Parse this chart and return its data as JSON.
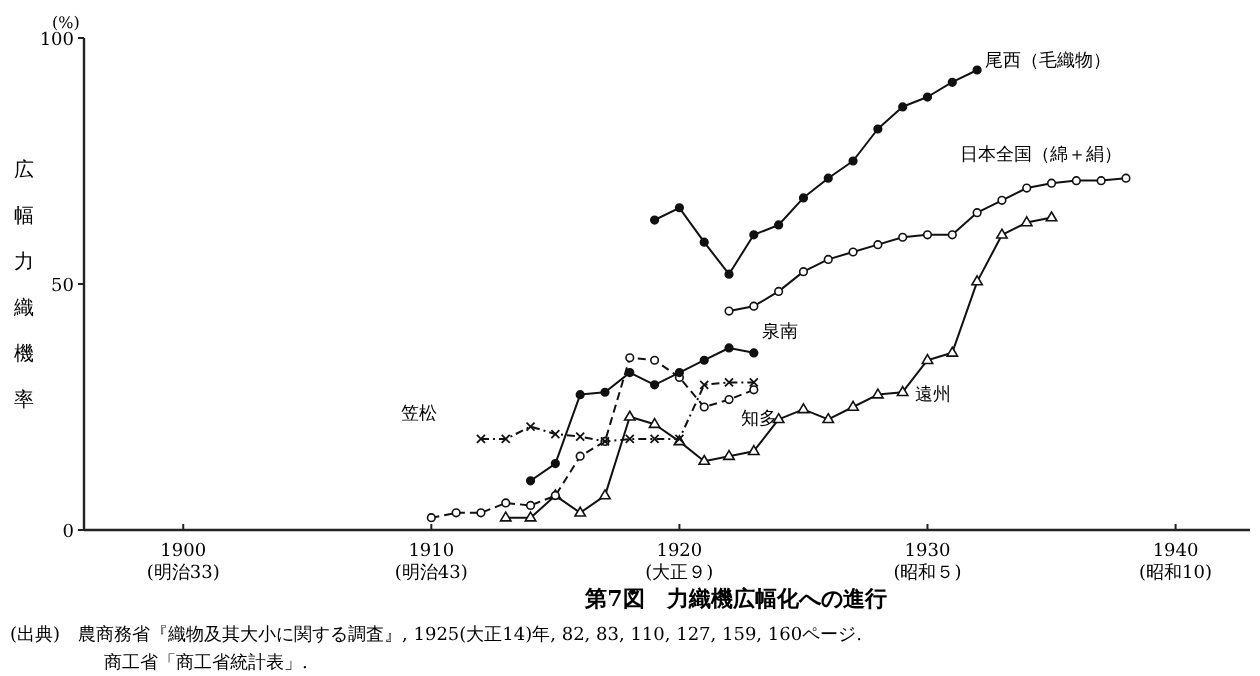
{
  "chart_data": {
    "type": "line",
    "title": "第7図　力織機広幅化への進行",
    "ylabel": "広幅力織機率",
    "xlim": [
      1896,
      1943
    ],
    "ylim": [
      0,
      100
    ],
    "xticks": [
      1900,
      1910,
      1920,
      1930,
      1940
    ],
    "yticks": [
      0,
      50,
      100
    ],
    "grid": false,
    "annotations": [
      "(%)",
      "(出典)　農商務省『織物及其大小に関する調査』, 1925(大正14)年,  82, 83, 110, 127, 159, 160ページ.",
      "商工省「商工省統計表」.",
      "(明治33)",
      "(明治43)",
      "(大正９)",
      "(昭和５)",
      "(昭和10)"
    ],
    "series": [
      {
        "name": "尾西（毛織物）",
        "color": "#111111",
        "marker": "circle",
        "line_style": "solid",
        "x": [
          1919,
          1920,
          1921,
          1922,
          1923,
          1924,
          1925,
          1926,
          1927,
          1928,
          1929,
          1930,
          1931,
          1932
        ],
        "values": [
          63,
          65.5,
          58.5,
          52,
          60,
          62,
          67.5,
          71.5,
          75,
          81.5,
          86,
          88,
          91,
          93.5
        ]
      },
      {
        "name": "日本全国（綿＋絹）",
        "color": "#111111",
        "marker": "circle",
        "line_style": "solid",
        "x": [
          1922,
          1923,
          1924,
          1925,
          1926,
          1927,
          1928,
          1929,
          1930,
          1931,
          1932,
          1933,
          1934,
          1935,
          1936,
          1937,
          1938
        ],
        "values": [
          44.5,
          45.5,
          48.5,
          52.5,
          55,
          56.5,
          58,
          59.5,
          60,
          60,
          64.5,
          67,
          69.5,
          70.5,
          71,
          71,
          71.5
        ]
      },
      {
        "name": "泉南",
        "color": "#111111",
        "marker": "circle",
        "line_style": "solid",
        "x": [
          1914,
          1915,
          1916,
          1917,
          1918,
          1919,
          1920,
          1921,
          1922,
          1923
        ],
        "values": [
          10,
          13.5,
          27.5,
          28,
          32,
          29.5,
          32,
          34.5,
          37,
          36
        ]
      },
      {
        "name": "笠松",
        "color": "#111111",
        "marker": "cross",
        "line_style": "dashdot",
        "x": [
          1912,
          1913,
          1914,
          1915,
          1916,
          1917,
          1918,
          1919,
          1920,
          1921,
          1922,
          1923
        ],
        "values": [
          18.5,
          18.5,
          21,
          19.5,
          19,
          18,
          18.5,
          18.5,
          18.5,
          29.5,
          30,
          30
        ]
      },
      {
        "name": "知多",
        "color": "#111111",
        "marker": "circle",
        "line_style": "dashed",
        "x": [
          1910,
          1911,
          1912,
          1913,
          1914,
          1915,
          1916,
          1917,
          1918,
          1919,
          1920,
          1921,
          1922,
          1923
        ],
        "values": [
          2.5,
          3.5,
          3.5,
          5.5,
          5,
          7,
          15,
          18,
          35,
          34.5,
          31,
          25,
          26.5,
          28.5
        ]
      },
      {
        "name": "遠州",
        "color": "#111111",
        "marker": "triangle",
        "line_style": "solid",
        "x": [
          1913,
          1914,
          1915,
          1916,
          1917,
          1918,
          1919,
          1920,
          1921,
          1922,
          1923,
          1924,
          1925,
          1926,
          1927,
          1928,
          1929,
          1930,
          1931,
          1932,
          1933,
          1934,
          1935
        ],
        "values": [
          2.5,
          2.5,
          7,
          3.5,
          7,
          23,
          21.5,
          18,
          14,
          15,
          16,
          22.5,
          24.5,
          22.5,
          25,
          27.5,
          28,
          34.5,
          36,
          50.5,
          60,
          62.5,
          63.5
        ]
      }
    ]
  }
}
